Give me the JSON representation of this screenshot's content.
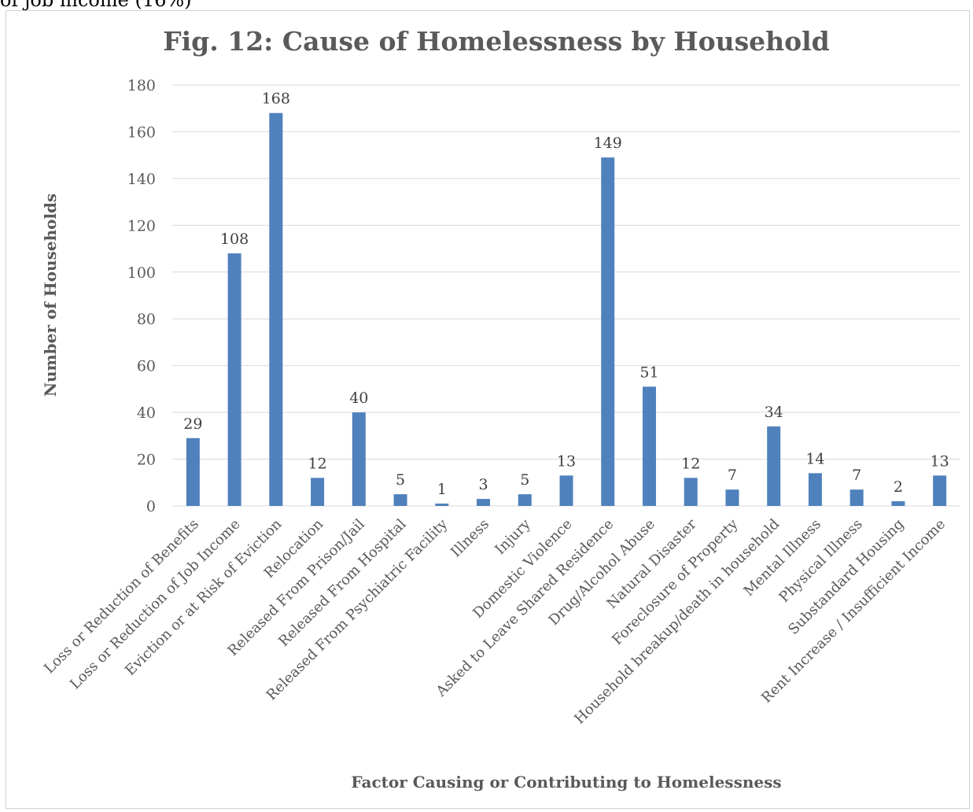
{
  "page": {
    "top_text": "of job income (16%)"
  },
  "chart_data": {
    "type": "bar",
    "title": "Fig. 12: Cause of Homelessness by Household",
    "xlabel": "Factor Causing or Contributing to Homelessness",
    "ylabel": "Number of Households",
    "ylim": [
      0,
      180
    ],
    "yticks": [
      0,
      20,
      40,
      60,
      80,
      100,
      120,
      140,
      160,
      180
    ],
    "grid": true,
    "bar_color": "#4f81bd",
    "categories": [
      "Loss or Reduction of Benefits",
      "Loss or Reduction of Job Income",
      "Eviction or at Risk of Eviction",
      "Relocation",
      "Released From Prison/Jail",
      "Released From Hospital",
      "Released From Psychiatric Facility",
      "Illness",
      "Injury",
      "Domestic Violence",
      "Asked to Leave Shared Residence",
      "Drug/Alcohol Abuse",
      "Natural Disaster",
      "Foreclosure of Property",
      "Household breakup/death in household",
      "Mental Illness",
      "Physical Illness",
      "Substandard Housing",
      "Rent Increase / Insufficient Income"
    ],
    "values": [
      29,
      108,
      168,
      12,
      40,
      5,
      1,
      3,
      5,
      13,
      149,
      51,
      12,
      7,
      34,
      14,
      7,
      2,
      13
    ]
  }
}
